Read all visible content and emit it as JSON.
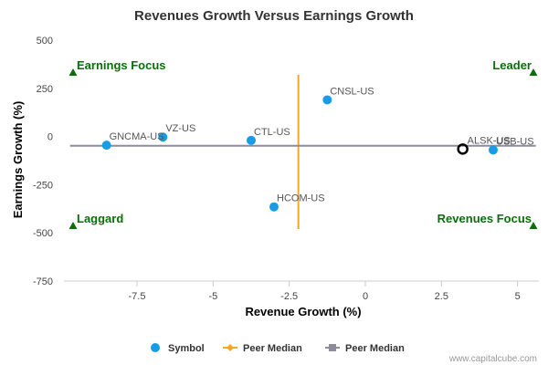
{
  "chart_data": {
    "type": "scatter",
    "title": "Revenues Growth Versus Earnings Growth",
    "xlabel": "Revenue Growth (%)",
    "ylabel": "Earnings Growth (%)",
    "xlim": [
      -9.9,
      5.7
    ],
    "ylim": [
      -750,
      500
    ],
    "x_ticks": [
      -7.5,
      -5,
      -2.5,
      0,
      2.5,
      5
    ],
    "x_tick_labels": [
      "-7.5",
      "-5",
      "-2.5",
      "0",
      "2.5",
      "5"
    ],
    "y_ticks": [
      500,
      250,
      0,
      -250,
      -500,
      -750
    ],
    "y_tick_labels": [
      "500",
      "250",
      "0",
      "-250",
      "-500",
      "-750"
    ],
    "grid": false,
    "series": [
      {
        "name": "Symbol",
        "color": "#1a9be6",
        "points": [
          {
            "label": "CNSL-US",
            "x": -1.25,
            "y": 190
          },
          {
            "label": "VZ-US",
            "x": -6.65,
            "y": -3
          },
          {
            "label": "GNCMA-US",
            "x": -8.5,
            "y": -45
          },
          {
            "label": "CTL-US",
            "x": -3.75,
            "y": -20
          },
          {
            "label": "HCOM-US",
            "x": -3.0,
            "y": -365
          },
          {
            "label": "USB-US",
            "x": 4.2,
            "y": -70
          }
        ]
      },
      {
        "name": "Peer Median",
        "color": "#f5a623",
        "orientation": "vertical",
        "x": -2.2,
        "y_range": [
          -480,
          320
        ]
      },
      {
        "name": "Peer Median",
        "color": "#8c8c9e",
        "orientation": "horizontal",
        "y": -48,
        "x_range": [
          -9.7,
          5.6
        ]
      }
    ],
    "highlight": {
      "label": "ALSK-US",
      "x": 3.2,
      "y": -65
    },
    "quadrants": {
      "top_left": "Earnings Focus",
      "top_right": "Leader",
      "bottom_left": "Laggard",
      "bottom_right": "Revenues Focus"
    },
    "quadrant_color": "#0a6e0a",
    "legend_position": "bottom"
  },
  "credit": "www.capitalcube.com"
}
